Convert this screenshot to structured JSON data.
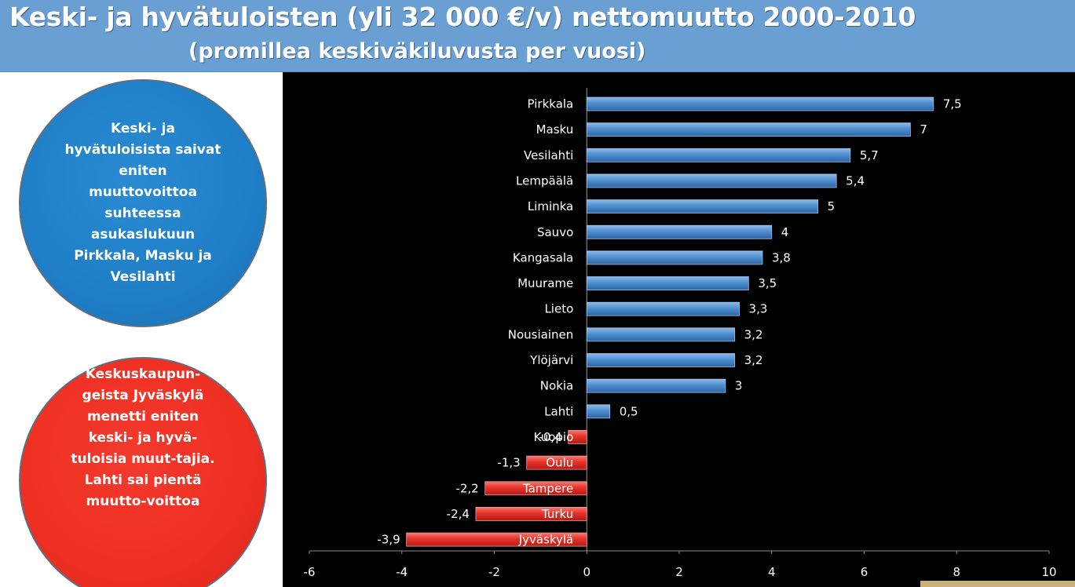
{
  "header": {
    "title": "Keski- ja hyvätuloisten (yli 32 000 €/v) nettomuutto 2000-2010",
    "subtitle": "(promillea keskiväkiluvusta per vuosi)"
  },
  "callouts": {
    "blue_text": "Keski- ja hyvätuloisista saivat eniten muuttovoittoa suhteessa asukaslukuun Pirkkala, Masku ja Vesilahti",
    "red_text": "Keskuskaupun-geista Jyväskylä menetti eniten keski- ja hyvä-tuloisia muut-tajia. Lahti sai pientä muutto-voittoa",
    "blue_color": "#1f7ec6",
    "red_color": "#ee2f22"
  },
  "chart_data": {
    "type": "bar",
    "orientation": "horizontal",
    "categories": [
      "Pirkkala",
      "Masku",
      "Vesilahti",
      "Lempäälä",
      "Liminka",
      "Sauvo",
      "Kangasala",
      "Muurame",
      "Lieto",
      "Nousiainen",
      "Ylöjärvi",
      "Nokia",
      "Lahti",
      "Kuopio",
      "Oulu",
      "Tampere",
      "Turku",
      "Jyväskylä"
    ],
    "values": [
      7.5,
      7,
      5.7,
      5.4,
      5,
      4,
      3.8,
      3.5,
      3.3,
      3.2,
      3.2,
      3,
      0.5,
      -0.4,
      -1.3,
      -2.2,
      -2.4,
      -3.9
    ],
    "value_labels": [
      "7,5",
      "7",
      "5,7",
      "5,4",
      "5",
      "4",
      "3,8",
      "3,5",
      "3,3",
      "3,2",
      "3,2",
      "3",
      "0,5",
      "-0,4",
      "-1,3",
      "-2,2",
      "-2,4",
      "-3,9"
    ],
    "positive_color": "#4f8fd0",
    "negative_color": "#e8322a",
    "xlim": [
      -6,
      10
    ],
    "xticks": [
      -6,
      -4,
      -2,
      0,
      2,
      4,
      6,
      8,
      10
    ],
    "background": "#000000",
    "title": "",
    "xlabel": "",
    "ylabel": ""
  }
}
